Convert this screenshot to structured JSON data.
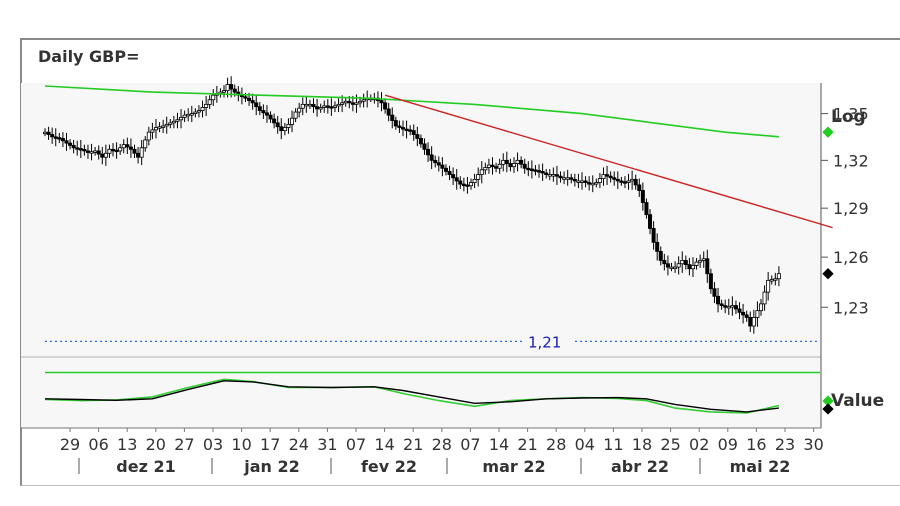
{
  "title": "Daily GBP=",
  "scale_label": "Log",
  "indicator_label": "Value",
  "colors": {
    "price": "#000000",
    "ma": "#22cc22",
    "trend": "#cc2222",
    "level": "#2a6fd6",
    "osc_main": "#000000",
    "osc_signal": "#33cc33",
    "osc_ref": "#22cc22"
  },
  "chart_data": [
    {
      "type": "candlestick",
      "title": "Daily GBP=",
      "scale": "log",
      "ylim": [
        1.205,
        1.37
      ],
      "yticks": [
        "1,35",
        "1,32",
        "1,29",
        "1,26",
        "1,23"
      ],
      "ytick_values": [
        1.35,
        1.32,
        1.29,
        1.26,
        1.23
      ],
      "xticks": [
        "29",
        "06",
        "13",
        "20",
        "27",
        "03",
        "10",
        "17",
        "24",
        "31",
        "07",
        "14",
        "21",
        "28",
        "07",
        "14",
        "21",
        "28",
        "04",
        "11",
        "18",
        "25",
        "02",
        "09",
        "16",
        "23",
        "30"
      ],
      "months": [
        "dez 21",
        "jan 22",
        "fev 22",
        "mar 22",
        "abr 22",
        "mai 22"
      ],
      "grid": false,
      "horizontal_level": {
        "value": 1.21,
        "label": "1,21"
      },
      "close_points": [
        [
          0,
          1.338
        ],
        [
          2,
          1.335
        ],
        [
          4,
          1.334
        ],
        [
          6,
          1.331
        ],
        [
          8,
          1.328
        ],
        [
          10,
          1.327
        ],
        [
          12,
          1.325
        ],
        [
          14,
          1.326
        ],
        [
          16,
          1.322
        ],
        [
          18,
          1.327
        ],
        [
          20,
          1.326
        ],
        [
          22,
          1.33
        ],
        [
          24,
          1.327
        ],
        [
          26,
          1.322
        ],
        [
          27,
          1.328
        ],
        [
          29,
          1.338
        ],
        [
          31,
          1.341
        ],
        [
          33,
          1.342
        ],
        [
          35,
          1.344
        ],
        [
          37,
          1.346
        ],
        [
          39,
          1.349
        ],
        [
          41,
          1.35
        ],
        [
          43,
          1.352
        ],
        [
          45,
          1.356
        ],
        [
          47,
          1.362
        ],
        [
          49,
          1.364
        ],
        [
          50,
          1.365
        ],
        [
          51,
          1.369
        ],
        [
          52,
          1.366
        ],
        [
          54,
          1.362
        ],
        [
          56,
          1.36
        ],
        [
          58,
          1.357
        ],
        [
          60,
          1.352
        ],
        [
          62,
          1.349
        ],
        [
          64,
          1.344
        ],
        [
          66,
          1.339
        ],
        [
          68,
          1.343
        ],
        [
          70,
          1.351
        ],
        [
          72,
          1.356
        ],
        [
          74,
          1.356
        ],
        [
          76,
          1.353
        ],
        [
          78,
          1.355
        ],
        [
          80,
          1.354
        ],
        [
          82,
          1.356
        ],
        [
          84,
          1.358
        ],
        [
          86,
          1.356
        ],
        [
          88,
          1.358
        ],
        [
          90,
          1.36
        ],
        [
          92,
          1.36
        ],
        [
          94,
          1.357
        ],
        [
          96,
          1.349
        ],
        [
          98,
          1.342
        ],
        [
          100,
          1.34
        ],
        [
          102,
          1.339
        ],
        [
          104,
          1.334
        ],
        [
          106,
          1.327
        ],
        [
          108,
          1.32
        ],
        [
          110,
          1.317
        ],
        [
          112,
          1.313
        ],
        [
          114,
          1.309
        ],
        [
          116,
          1.305
        ],
        [
          118,
          1.304
        ],
        [
          120,
          1.308
        ],
        [
          122,
          1.314
        ],
        [
          124,
          1.317
        ],
        [
          126,
          1.315
        ],
        [
          128,
          1.32
        ],
        [
          130,
          1.316
        ],
        [
          132,
          1.32
        ],
        [
          134,
          1.315
        ],
        [
          136,
          1.314
        ],
        [
          138,
          1.313
        ],
        [
          140,
          1.311
        ],
        [
          142,
          1.311
        ],
        [
          144,
          1.309
        ],
        [
          146,
          1.309
        ],
        [
          148,
          1.307
        ],
        [
          150,
          1.307
        ],
        [
          152,
          1.305
        ],
        [
          154,
          1.306
        ],
        [
          156,
          1.311
        ],
        [
          158,
          1.309
        ],
        [
          160,
          1.307
        ],
        [
          162,
          1.306
        ],
        [
          164,
          1.308
        ],
        [
          166,
          1.301
        ],
        [
          168,
          1.286
        ],
        [
          170,
          1.269
        ],
        [
          172,
          1.258
        ],
        [
          174,
          1.254
        ],
        [
          176,
          1.254
        ],
        [
          178,
          1.258
        ],
        [
          180,
          1.253
        ],
        [
          182,
          1.257
        ],
        [
          184,
          1.259
        ],
        [
          186,
          1.241
        ],
        [
          188,
          1.232
        ],
        [
          190,
          1.23
        ],
        [
          192,
          1.231
        ],
        [
          194,
          1.227
        ],
        [
          196,
          1.224
        ],
        [
          197,
          1.219
        ],
        [
          198,
          1.224
        ],
        [
          200,
          1.232
        ],
        [
          202,
          1.246
        ],
        [
          204,
          1.247
        ],
        [
          205,
          1.25
        ]
      ],
      "moving_average_points": [
        [
          0,
          1.368
        ],
        [
          30,
          1.364
        ],
        [
          60,
          1.362
        ],
        [
          90,
          1.36
        ],
        [
          120,
          1.356
        ],
        [
          150,
          1.35
        ],
        [
          170,
          1.344
        ],
        [
          190,
          1.338
        ],
        [
          205,
          1.335
        ]
      ],
      "trendline_points": [
        [
          95,
          1.362
        ],
        [
          220,
          1.278
        ]
      ]
    },
    {
      "type": "line",
      "title": "Value",
      "series": [],
      "reference_line": 1,
      "main_points": [
        [
          0,
          0.3
        ],
        [
          10,
          0.28
        ],
        [
          20,
          0.26
        ],
        [
          30,
          0.3
        ],
        [
          40,
          0.55
        ],
        [
          50,
          0.78
        ],
        [
          58,
          0.75
        ],
        [
          68,
          0.62
        ],
        [
          80,
          0.6
        ],
        [
          92,
          0.62
        ],
        [
          100,
          0.52
        ],
        [
          110,
          0.35
        ],
        [
          120,
          0.18
        ],
        [
          130,
          0.22
        ],
        [
          140,
          0.3
        ],
        [
          150,
          0.32
        ],
        [
          160,
          0.33
        ],
        [
          168,
          0.3
        ],
        [
          176,
          0.15
        ],
        [
          186,
          0.02
        ],
        [
          196,
          -0.05
        ],
        [
          205,
          0.05
        ]
      ],
      "signal_points": [
        [
          0,
          0.28
        ],
        [
          10,
          0.25
        ],
        [
          20,
          0.27
        ],
        [
          30,
          0.35
        ],
        [
          40,
          0.6
        ],
        [
          50,
          0.82
        ],
        [
          58,
          0.76
        ],
        [
          68,
          0.6
        ],
        [
          80,
          0.6
        ],
        [
          92,
          0.62
        ],
        [
          100,
          0.44
        ],
        [
          110,
          0.25
        ],
        [
          120,
          0.1
        ],
        [
          130,
          0.25
        ],
        [
          140,
          0.3
        ],
        [
          150,
          0.33
        ],
        [
          160,
          0.31
        ],
        [
          168,
          0.25
        ],
        [
          176,
          0.05
        ],
        [
          186,
          -0.05
        ],
        [
          196,
          -0.08
        ],
        [
          205,
          0.12
        ]
      ],
      "ylim": [
        -0.4,
        1.2
      ]
    }
  ]
}
